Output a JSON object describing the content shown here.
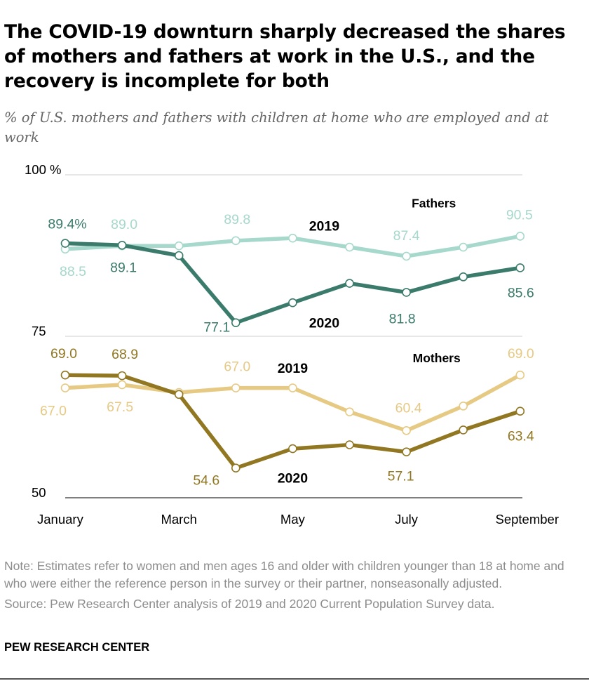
{
  "title": "The COVID-19 downturn sharply decreased the shares of mothers and fathers at work in the U.S., and the recovery is incomplete for both",
  "subtitle": "% of U.S. mothers and fathers with children at home who are employed and at work",
  "note": "Note: Estimates refer to women and men ages 16 and older with children younger than 18 at home and who were either the reference person in the survey or their partner, nonseasonally adjusted.",
  "source": "Source: Pew Research Center analysis of 2019 and 2020 Current Population Survey data.",
  "brand": "PEW RESEARCH CENTER",
  "colors": {
    "fathers_2019": "#a6d8cb",
    "fathers_2020": "#3b7b6b",
    "mothers_2019": "#e6ca84",
    "mothers_2020": "#917721"
  },
  "chart_data": {
    "type": "line",
    "months": [
      "January",
      "February",
      "March",
      "April",
      "May",
      "June",
      "July",
      "August",
      "September"
    ],
    "x_tick_labels": [
      {
        "month": "January"
      },
      {
        "month": "March"
      },
      {
        "month": "May"
      },
      {
        "month": "July"
      },
      {
        "month": "September"
      }
    ],
    "ylim": [
      50,
      100
    ],
    "gridlines": [
      {
        "value": 100,
        "label": "100 %"
      },
      {
        "value": 75,
        "label": "75"
      },
      {
        "value": 50,
        "label": "50"
      }
    ],
    "group_labels": [
      "Fathers",
      "Mothers"
    ],
    "series": [
      {
        "name": "Fathers 2019",
        "group": "Fathers",
        "year_label": "2019",
        "color_key": "fathers_2019",
        "values": [
          88.5,
          89.0,
          89.0,
          89.8,
          90.2,
          88.8,
          87.4,
          88.8,
          90.5
        ]
      },
      {
        "name": "Fathers 2020",
        "group": "Fathers",
        "year_label": "2020",
        "color_key": "fathers_2020",
        "values": [
          89.4,
          89.1,
          87.5,
          77.1,
          80.2,
          83.2,
          81.8,
          84.2,
          85.6
        ]
      },
      {
        "name": "Mothers 2019",
        "group": "Mothers",
        "year_label": "2019",
        "color_key": "mothers_2019",
        "values": [
          67.0,
          67.5,
          66.3,
          67.0,
          67.0,
          63.3,
          60.4,
          64.2,
          69.0
        ]
      },
      {
        "name": "Mothers 2020",
        "group": "Mothers",
        "year_label": "2020",
        "color_key": "mothers_2020",
        "values": [
          69.0,
          68.9,
          66.0,
          54.6,
          57.6,
          58.2,
          57.1,
          60.5,
          63.4
        ]
      }
    ],
    "data_labels": [
      {
        "series": "Fathers 2020",
        "month": "January",
        "text": "89.4%"
      },
      {
        "series": "Fathers 2019",
        "month": "January",
        "text": "88.5"
      },
      {
        "series": "Fathers 2019",
        "month": "February",
        "text": "89.0"
      },
      {
        "series": "Fathers 2020",
        "month": "February",
        "text": "89.1"
      },
      {
        "series": "Fathers 2019",
        "month": "April",
        "text": "89.8"
      },
      {
        "series": "Fathers 2020",
        "month": "April",
        "text": "77.1"
      },
      {
        "series": "Fathers 2019",
        "month": "July",
        "text": "87.4"
      },
      {
        "series": "Fathers 2020",
        "month": "July",
        "text": "81.8"
      },
      {
        "series": "Fathers 2019",
        "month": "September",
        "text": "90.5"
      },
      {
        "series": "Fathers 2020",
        "month": "September",
        "text": "85.6"
      },
      {
        "series": "Mothers 2020",
        "month": "January",
        "text": "69.0"
      },
      {
        "series": "Mothers 2019",
        "month": "January",
        "text": "67.0"
      },
      {
        "series": "Mothers 2020",
        "month": "February",
        "text": "68.9"
      },
      {
        "series": "Mothers 2019",
        "month": "February",
        "text": "67.5"
      },
      {
        "series": "Mothers 2019",
        "month": "April",
        "text": "67.0"
      },
      {
        "series": "Mothers 2020",
        "month": "April",
        "text": "54.6"
      },
      {
        "series": "Mothers 2019",
        "month": "July",
        "text": "60.4"
      },
      {
        "series": "Mothers 2020",
        "month": "July",
        "text": "57.1"
      },
      {
        "series": "Mothers 2019",
        "month": "September",
        "text": "69.0"
      },
      {
        "series": "Mothers 2020",
        "month": "September",
        "text": "63.4"
      }
    ]
  }
}
